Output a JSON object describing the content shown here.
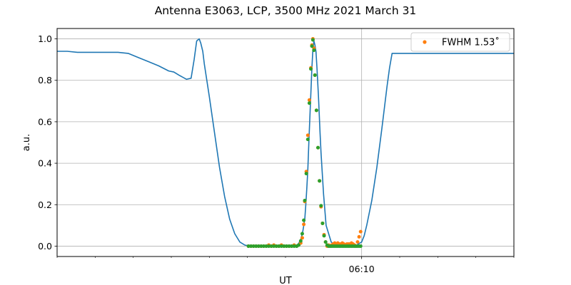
{
  "chart_data": {
    "type": "line",
    "title": "Antenna E3063, LCP, 3500 MHz 2021 March 31",
    "xlabel": "UT",
    "ylabel": "a.u.",
    "x_unit": "minutes",
    "xlim": [
      -60,
      30
    ],
    "ylim": [
      -0.05,
      1.05
    ],
    "x_ticks": [
      {
        "x": 0,
        "label": "06:10"
      }
    ],
    "x_minor_ticks": [
      -60,
      -52.5,
      -45,
      -37.5,
      -30,
      -22.5,
      -15,
      -7.5,
      7.5,
      15,
      22.5,
      30
    ],
    "y_ticks": [
      0.0,
      0.2,
      0.4,
      0.6,
      0.8,
      1.0
    ],
    "y_tick_labels": [
      "0.0",
      "0.2",
      "0.4",
      "0.6",
      "0.8",
      "1.0"
    ],
    "grid": true,
    "legend_position": "top-right",
    "vline_x": 0,
    "colors": {
      "line": "#1f77b4",
      "fit": "#ff7f0e",
      "model": "#2ca02c",
      "grid": "#b0b0b0"
    },
    "series": [
      {
        "kind": "line",
        "color": "#1f77b4",
        "x": [
          -60,
          -58,
          -56,
          -54,
          -52,
          -50,
          -48,
          -46,
          -44,
          -42,
          -40,
          -38,
          -37,
          -36,
          -34.5,
          -33.6,
          -33,
          -32.5,
          -32,
          -31.7,
          -31.3,
          -31,
          -30.5,
          -30,
          -29,
          -28,
          -27,
          -26,
          -25,
          -24,
          -23,
          -22,
          -21,
          -20,
          -19.5,
          -19,
          -18,
          -17,
          -16,
          -15,
          -14,
          -13,
          -12.5,
          -12,
          -11.6,
          -11.2,
          -11,
          -10.8,
          -10.6,
          -10.4,
          -10.2,
          -10,
          -9.8,
          -9.6,
          -9.4,
          -9.2,
          -9,
          -8.8,
          -8.5,
          -8.2,
          -8,
          -7.5,
          -7,
          -6,
          -5,
          -4,
          -3,
          -2,
          -1,
          0,
          0.5,
          1,
          2,
          3,
          4,
          4.5,
          5,
          5.5,
          6,
          8,
          10,
          15,
          20,
          25,
          30
        ],
        "y": [
          0.94,
          0.94,
          0.935,
          0.935,
          0.935,
          0.935,
          0.935,
          0.93,
          0.91,
          0.89,
          0.87,
          0.845,
          0.84,
          0.825,
          0.805,
          0.81,
          0.9,
          0.99,
          1.0,
          0.98,
          0.94,
          0.88,
          0.8,
          0.72,
          0.55,
          0.38,
          0.24,
          0.13,
          0.06,
          0.02,
          0.005,
          0.0,
          0.0,
          0.0,
          0.0,
          0.0,
          0.0,
          0.0,
          0.0,
          0.0,
          0.0,
          0.0,
          0.01,
          0.03,
          0.07,
          0.13,
          0.2,
          0.28,
          0.37,
          0.5,
          0.62,
          0.74,
          0.86,
          0.95,
          0.99,
          0.97,
          0.94,
          0.86,
          0.72,
          0.55,
          0.45,
          0.25,
          0.1,
          0.02,
          0.0,
          0.0,
          0.0,
          0.0,
          0.005,
          0.02,
          0.05,
          0.1,
          0.22,
          0.38,
          0.57,
          0.67,
          0.77,
          0.86,
          0.93,
          0.93,
          0.93,
          0.93,
          0.93,
          0.93,
          0.93
        ]
      },
      {
        "kind": "points",
        "name": "FWHM 1.53˚",
        "color": "#ff7f0e",
        "x": [
          -22.3,
          -21.8,
          -21.3,
          -20.8,
          -20.3,
          -19.8,
          -19.3,
          -18.8,
          -18.3,
          -17.8,
          -17.3,
          -16.8,
          -16.3,
          -15.8,
          -15.3,
          -14.8,
          -14.3,
          -13.8,
          -13.3,
          -12.8,
          -12.4,
          -12.0,
          -11.7,
          -11.4,
          -11.2,
          -10.9,
          -10.6,
          -10.3,
          -10.0,
          -9.8,
          -9.6,
          -9.4,
          -9.2,
          -8.9,
          -8.6,
          -8.3,
          -8.0,
          -7.7,
          -7.4,
          -7.1,
          -6.8,
          -6.5,
          -6.2,
          -5.9,
          -5.6,
          -5.3,
          -5.0,
          -4.7,
          -4.4,
          -4.1,
          -3.8,
          -3.5,
          -3.2,
          -2.9,
          -2.6,
          -2.3,
          -2.0,
          -1.7,
          -1.4,
          -1.1,
          -0.8,
          -0.5,
          -0.2
        ],
        "y": [
          0.0,
          0.0,
          0.0,
          0.0,
          0.0,
          0.0,
          0.0,
          0.0,
          0.005,
          0.0,
          0.005,
          0.0,
          0.0,
          0.005,
          0.0,
          0.0,
          0.0,
          0.0,
          0.005,
          0.0,
          0.005,
          0.015,
          0.04,
          0.105,
          0.215,
          0.36,
          0.535,
          0.705,
          0.86,
          0.97,
          1.0,
          0.955,
          0.825,
          0.655,
          0.475,
          0.315,
          0.19,
          0.11,
          0.055,
          0.02,
          0.0,
          0.005,
          0.0,
          0.005,
          0.01,
          0.015,
          0.01,
          0.015,
          0.01,
          0.01,
          0.015,
          0.01,
          0.005,
          0.01,
          0.01,
          0.01,
          0.015,
          0.01,
          0.005,
          0.0,
          0.02,
          0.045,
          0.07
        ]
      },
      {
        "kind": "points",
        "color": "#2ca02c",
        "x": [
          -22.3,
          -21.8,
          -21.3,
          -20.8,
          -20.3,
          -19.8,
          -19.3,
          -18.8,
          -18.3,
          -17.8,
          -17.3,
          -16.8,
          -16.3,
          -15.8,
          -15.3,
          -14.8,
          -14.3,
          -13.8,
          -13.3,
          -12.8,
          -12.4,
          -12.0,
          -11.7,
          -11.4,
          -11.2,
          -10.9,
          -10.6,
          -10.3,
          -10.0,
          -9.8,
          -9.6,
          -9.4,
          -9.2,
          -8.9,
          -8.6,
          -8.3,
          -8.0,
          -7.7,
          -7.4,
          -7.1,
          -6.8,
          -6.5,
          -6.2,
          -5.9,
          -5.6,
          -5.3,
          -5.0,
          -4.7,
          -4.4,
          -4.1,
          -3.8,
          -3.5,
          -3.2,
          -2.9,
          -2.6,
          -2.3,
          -2.0,
          -1.7,
          -1.4,
          -1.1,
          -0.8,
          -0.5,
          -0.2
        ],
        "y": [
          0.0,
          0.0,
          0.0,
          0.0,
          0.0,
          0.0,
          0.0,
          0.0,
          0.0,
          0.0,
          0.0,
          0.0,
          0.0,
          0.0,
          0.0,
          0.0,
          0.0,
          0.0,
          0.0,
          0.0,
          0.005,
          0.025,
          0.06,
          0.125,
          0.22,
          0.35,
          0.515,
          0.69,
          0.855,
          0.965,
          0.995,
          0.945,
          0.825,
          0.655,
          0.475,
          0.315,
          0.195,
          0.11,
          0.05,
          0.02,
          0.005,
          0.0,
          0.0,
          0.0,
          0.0,
          0.0,
          0.0,
          0.0,
          0.0,
          0.0,
          0.0,
          0.0,
          0.0,
          0.0,
          0.0,
          0.0,
          0.0,
          0.0,
          0.0,
          0.0,
          0.0,
          0.0,
          0.0
        ]
      }
    ]
  }
}
